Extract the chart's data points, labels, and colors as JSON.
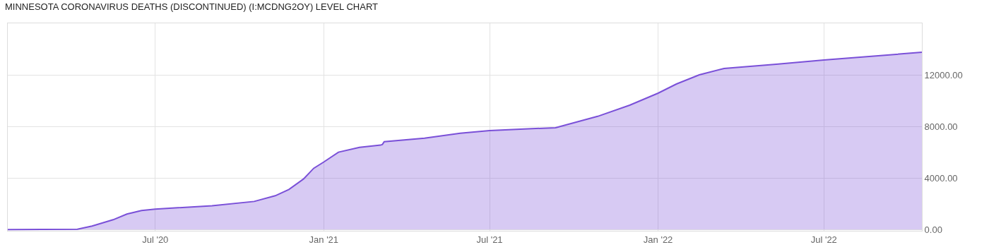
{
  "chart_data": {
    "type": "area",
    "title": "MINNESOTA CORONAVIRUS DEATHS (DISCONTINUED) (I:MCDNG2OY) LEVEL CHART",
    "x": [
      "2020-01-22",
      "2020-04-07",
      "2020-04-23",
      "2020-05-16",
      "2020-05-31",
      "2020-06-16",
      "2020-07-01",
      "2020-09-01",
      "2020-10-17",
      "2020-11-09",
      "2020-11-24",
      "2020-12-10",
      "2020-12-21",
      "2021-01-01",
      "2021-01-17",
      "2021-02-09",
      "2021-03-04",
      "2021-03-06",
      "2021-03-08",
      "2021-04-21",
      "2021-05-30",
      "2021-07-01",
      "2021-09-11",
      "2021-10-27",
      "2021-12-01",
      "2022-01-01",
      "2022-01-21",
      "2022-02-15",
      "2022-03-14",
      "2022-05-10",
      "2022-07-01",
      "2022-10-16"
    ],
    "series": [
      {
        "color": "#7a50d8",
        "values": [
          0,
          30,
          270,
          760,
          1200,
          1470,
          1580,
          1850,
          2180,
          2620,
          3110,
          3930,
          4750,
          5240,
          6000,
          6380,
          6550,
          6600,
          6820,
          7090,
          7470,
          7680,
          7900,
          8780,
          9650,
          10580,
          11290,
          12000,
          12500,
          12820,
          13150,
          13750
        ]
      }
    ],
    "xlim": [
      "2020-01-22",
      "2022-10-16"
    ],
    "xticks": [
      {
        "value": "2020-07-01",
        "label": "Jul '20"
      },
      {
        "value": "2021-01-01",
        "label": "Jan '21"
      },
      {
        "value": "2021-07-01",
        "label": "Jul '21"
      },
      {
        "value": "2022-01-01",
        "label": "Jan '22"
      },
      {
        "value": "2022-07-01",
        "label": "Jul '22"
      }
    ],
    "ylim": [
      -100,
      16000
    ],
    "yticks": [
      {
        "value": 0,
        "label": "0.00"
      },
      {
        "value": 4000,
        "label": "4000.00"
      },
      {
        "value": 8000,
        "label": "8000.00"
      },
      {
        "value": 12000,
        "label": "12000.00"
      }
    ],
    "grid": true,
    "marker": "none",
    "line_style": "solid"
  }
}
